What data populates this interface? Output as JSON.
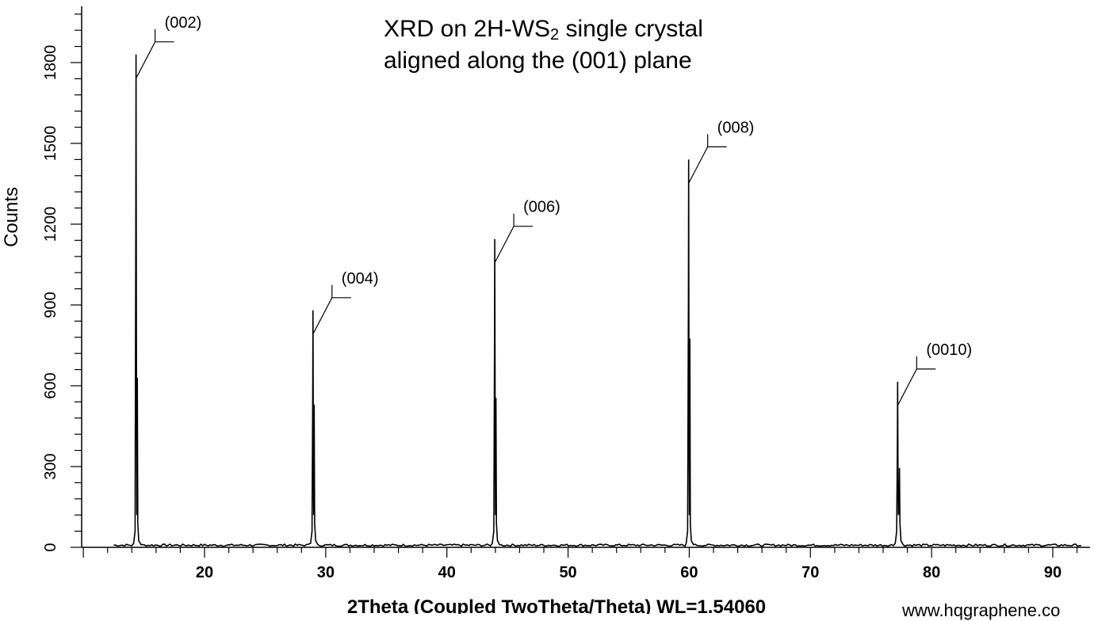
{
  "title": {
    "line1_prefix": "XRD on 2H-WS",
    "line1_sub": "2",
    "line1_suffix": " single crystal",
    "line2": "aligned along the (001) plane"
  },
  "watermark": "www.hqgraphene.co",
  "chart_data": {
    "type": "line",
    "title": "XRD on 2H-WS2 single crystal aligned along the (001) plane",
    "xlabel": "2Theta (Coupled TwoTheta/Theta) WL=1.54060",
    "ylabel": "Counts",
    "xlim": [
      10,
      93
    ],
    "ylim": [
      0,
      1980
    ],
    "xticks": [
      20,
      30,
      40,
      50,
      60,
      70,
      80,
      90
    ],
    "yticks": [
      0,
      300,
      600,
      900,
      1200,
      1500,
      1800
    ],
    "grid": false,
    "line_color": "#000000",
    "peaks": [
      {
        "label": "(002)",
        "x": 14.35,
        "y": 1830
      },
      {
        "label": "(004)",
        "x": 28.95,
        "y": 880
      },
      {
        "label": "(006)",
        "x": 43.95,
        "y": 1145
      },
      {
        "label": "(008)",
        "x": 59.95,
        "y": 1440
      },
      {
        "label": "(0010)",
        "x": 77.2,
        "y": 615
      }
    ],
    "secondary_peaks": [
      {
        "x": 14.45,
        "y": 630
      },
      {
        "x": 29.05,
        "y": 530
      },
      {
        "x": 44.05,
        "y": 555
      },
      {
        "x": 60.05,
        "y": 775
      },
      {
        "x": 77.35,
        "y": 295
      }
    ]
  }
}
